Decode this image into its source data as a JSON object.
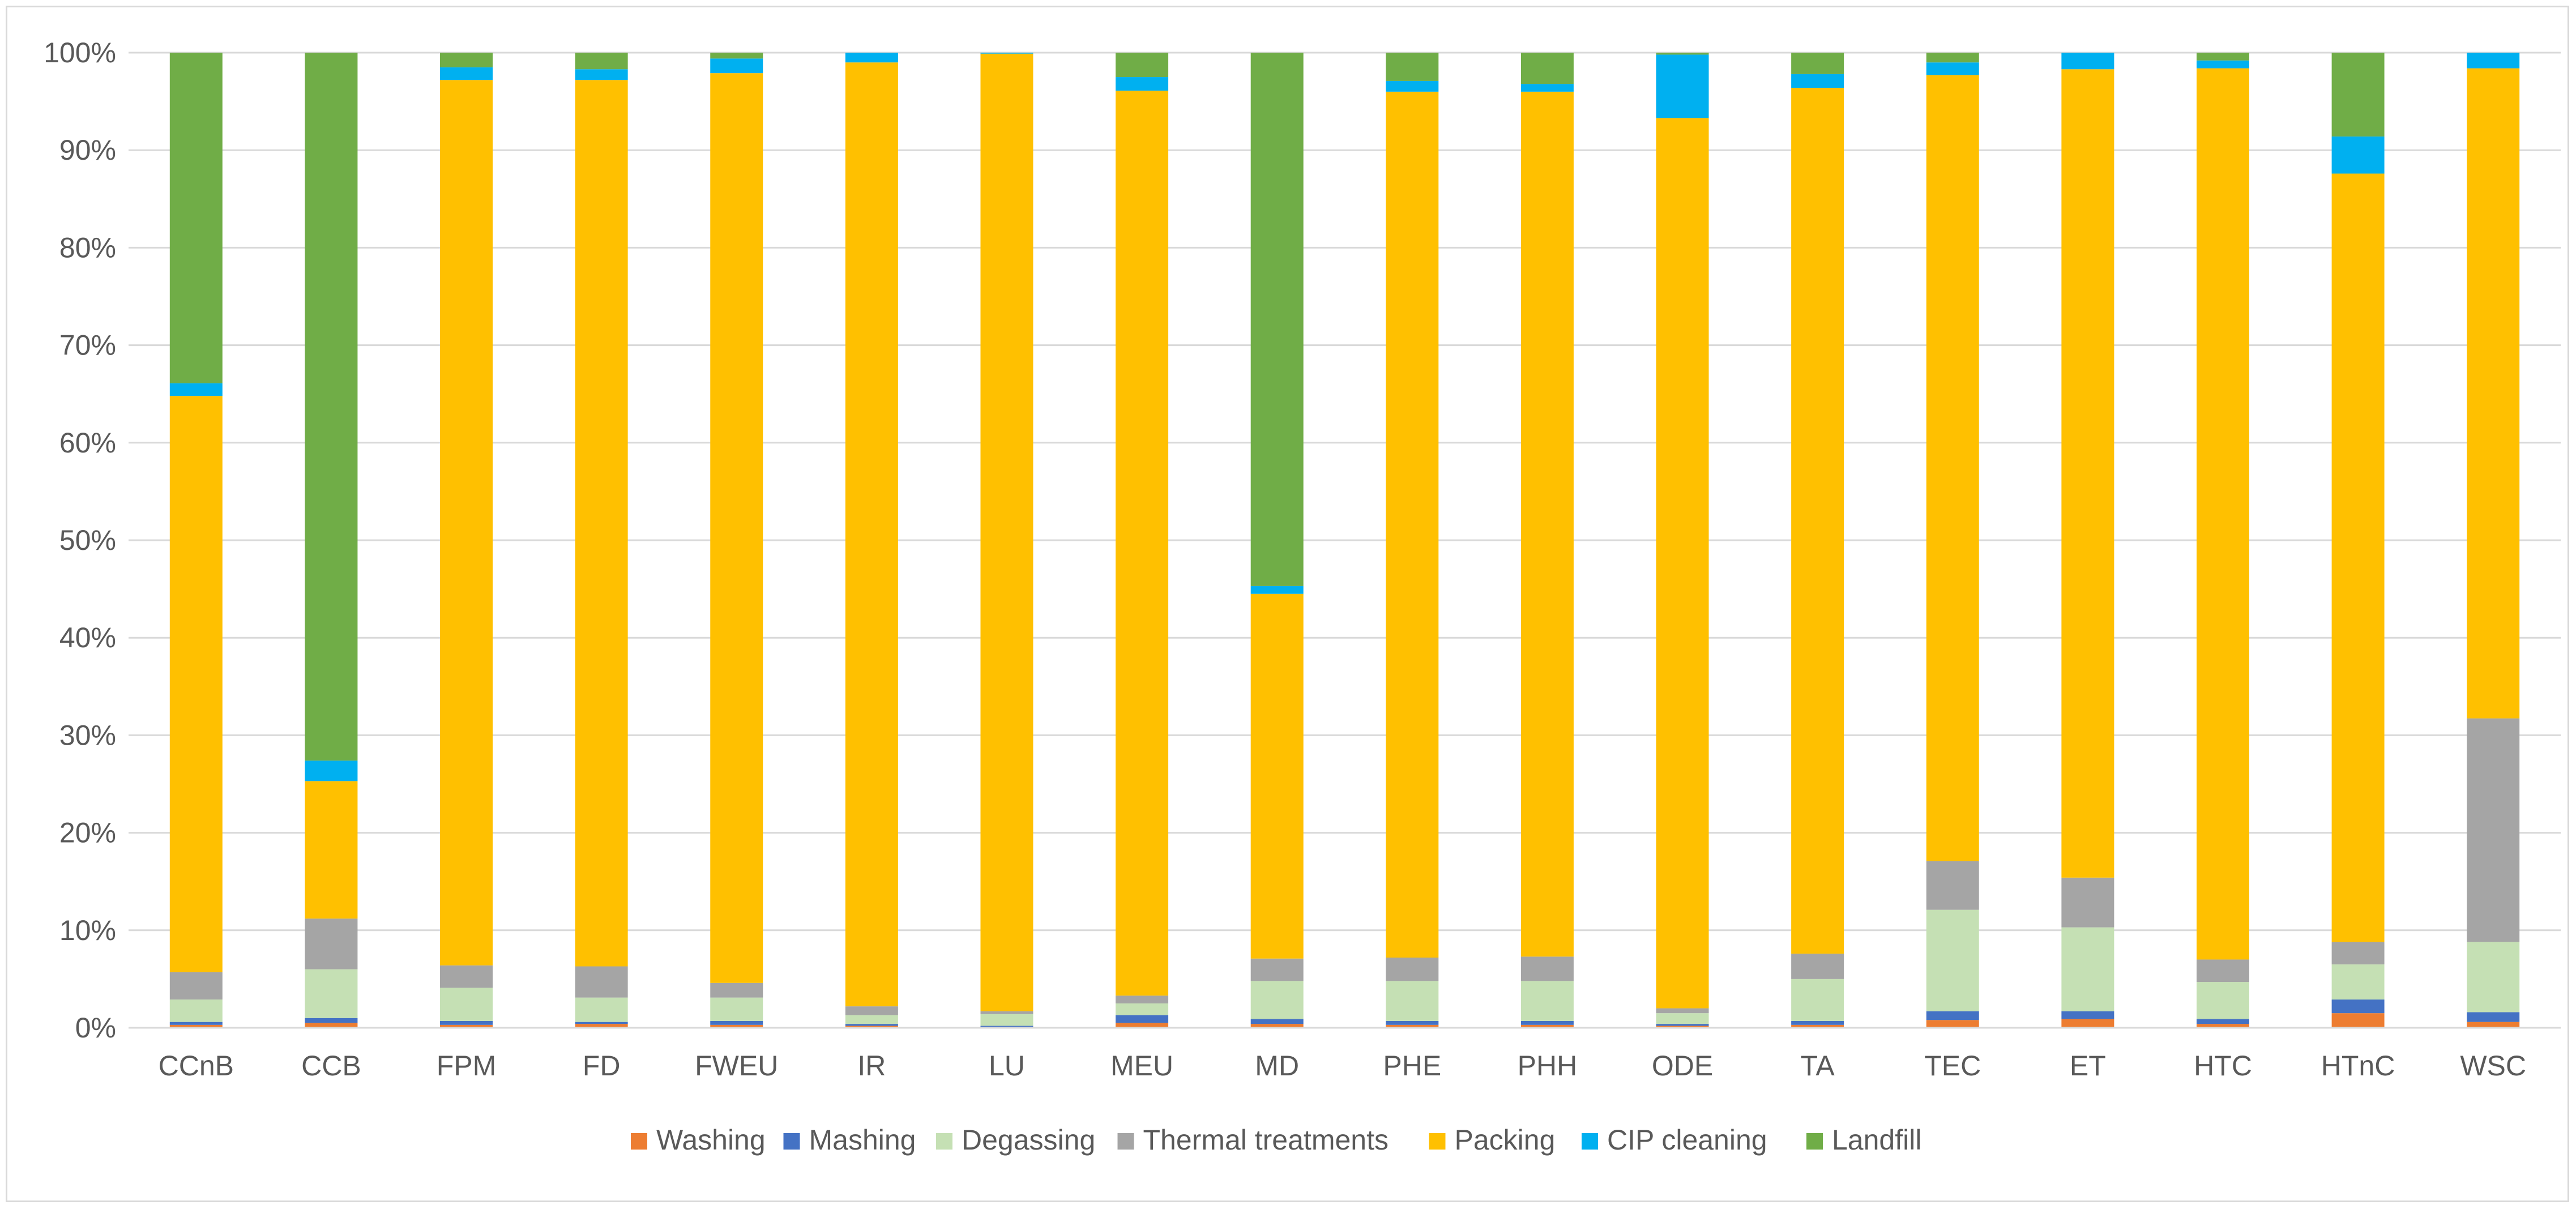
{
  "chart_data": {
    "type": "bar",
    "stacked": true,
    "normalized": true,
    "title": "",
    "xlabel": "",
    "ylabel": "",
    "ylim": [
      0,
      1
    ],
    "y_ticks": [
      "0%",
      "10%",
      "20%",
      "30%",
      "40%",
      "50%",
      "60%",
      "70%",
      "80%",
      "90%",
      "100%"
    ],
    "grid": true,
    "legend_position": "bottom",
    "categories": [
      "CCnB",
      "CCB",
      "FPM",
      "FD",
      "FWEU",
      "IR",
      "LU",
      "MEU",
      "MD",
      "PHE",
      "PHH",
      "ODE",
      "TA",
      "TEC",
      "ET",
      "HTC",
      "HTnC",
      "WSC"
    ],
    "series": [
      {
        "name": "Washing",
        "color": "#ED7D31",
        "values": [
          0.3,
          0.5,
          0.3,
          0.4,
          0.3,
          0.2,
          0.1,
          0.5,
          0.4,
          0.3,
          0.3,
          0.2,
          0.3,
          0.8,
          0.9,
          0.4,
          1.5,
          0.6
        ]
      },
      {
        "name": "Mashing",
        "color": "#4472C4",
        "values": [
          0.3,
          0.5,
          0.4,
          0.2,
          0.4,
          0.2,
          0.1,
          0.8,
          0.5,
          0.4,
          0.4,
          0.2,
          0.4,
          0.9,
          0.8,
          0.5,
          1.4,
          1.0
        ]
      },
      {
        "name": "Degassing",
        "color": "#C5E0B4",
        "values": [
          2.3,
          5.0,
          3.4,
          2.5,
          2.4,
          0.9,
          1.2,
          1.2,
          3.9,
          4.1,
          4.1,
          1.1,
          4.3,
          10.4,
          8.6,
          3.8,
          3.6,
          7.2
        ]
      },
      {
        "name": "Thermal treatments",
        "color": "#A5A5A5",
        "values": [
          2.8,
          5.2,
          2.3,
          3.2,
          1.5,
          0.9,
          0.3,
          0.8,
          2.3,
          2.4,
          2.5,
          0.5,
          2.6,
          5.0,
          5.1,
          2.3,
          2.3,
          22.9
        ]
      },
      {
        "name": "Packing",
        "color": "#FFC000",
        "values": [
          59.1,
          14.1,
          90.8,
          90.9,
          93.3,
          96.8,
          98.2,
          92.8,
          37.4,
          88.8,
          88.7,
          91.3,
          88.8,
          80.6,
          82.9,
          91.4,
          78.8,
          66.6
        ]
      },
      {
        "name": "CIP cleaning",
        "color": "#00B0F0",
        "values": [
          1.3,
          2.1,
          1.3,
          1.1,
          1.5,
          1.0,
          0.1,
          1.4,
          0.8,
          1.1,
          0.8,
          6.5,
          1.4,
          1.3,
          1.7,
          0.8,
          3.8,
          1.6
        ]
      },
      {
        "name": "Landfill",
        "color": "#70AD47",
        "values": [
          33.9,
          72.6,
          1.5,
          1.7,
          0.6,
          0.0,
          0.0,
          2.5,
          54.7,
          2.9,
          3.2,
          0.2,
          2.2,
          1.0,
          0.0,
          0.8,
          8.6,
          0.0
        ]
      }
    ]
  }
}
